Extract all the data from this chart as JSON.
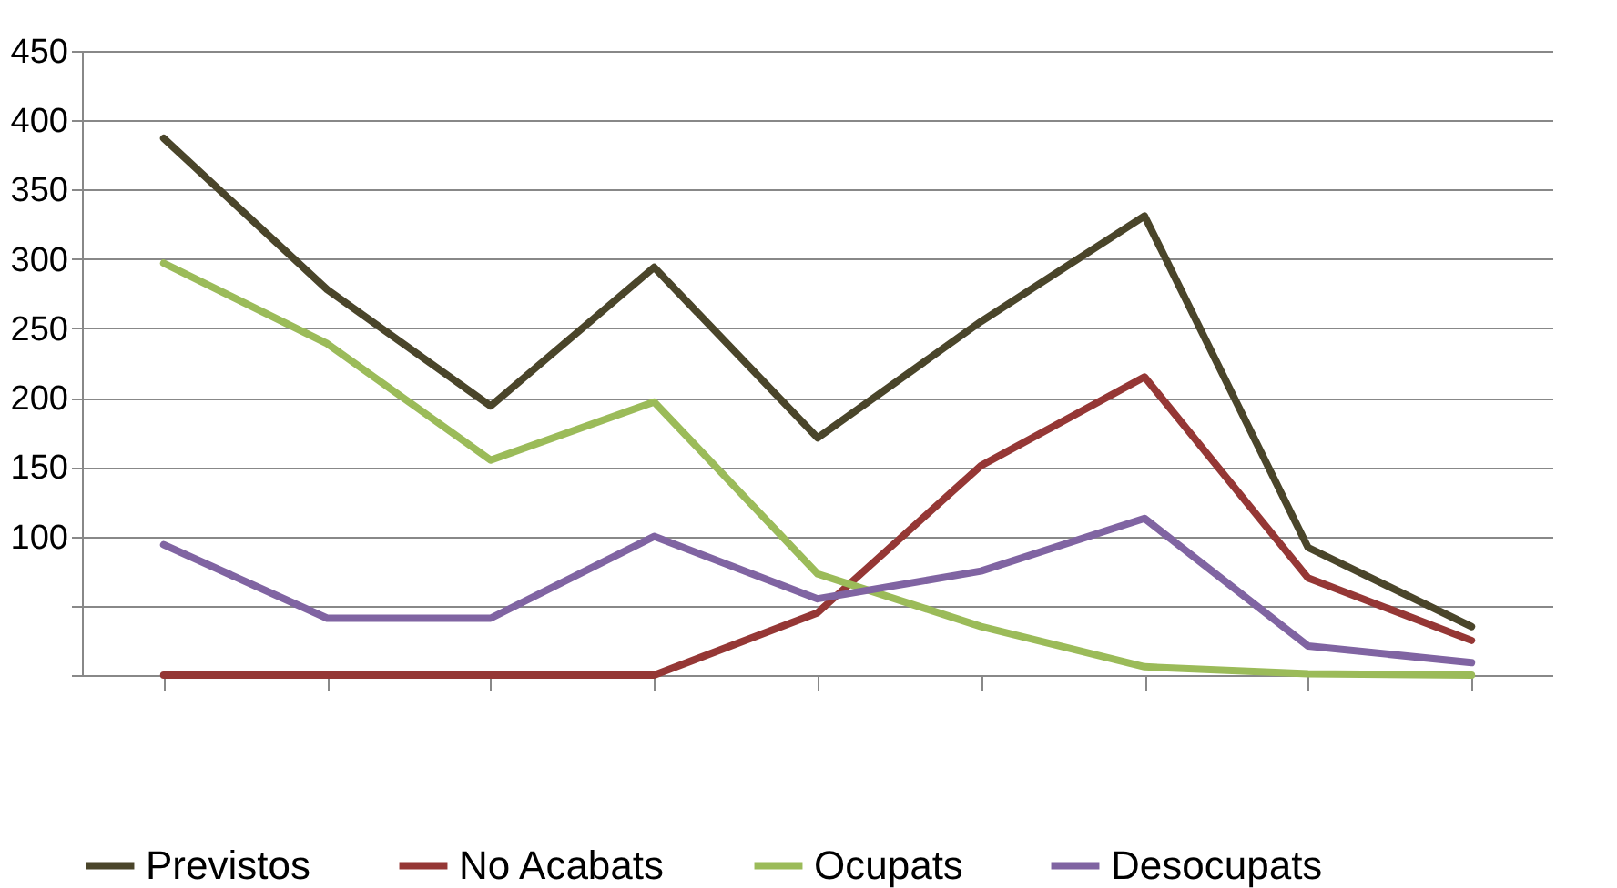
{
  "chart_data": {
    "type": "line",
    "categories": [
      null,
      null,
      null,
      null,
      null,
      null,
      null,
      null,
      null
    ],
    "series": [
      {
        "name": "Previstos",
        "color": "#4a452a",
        "values": [
          387,
          278,
          194,
          294,
          171,
          255,
          331,
          92,
          35
        ]
      },
      {
        "name": "No Acabats",
        "color": "#953735",
        "values": [
          0,
          0,
          0,
          0,
          45,
          151,
          215,
          70,
          25
        ]
      },
      {
        "name": "Ocupats",
        "color": "#9bbb59",
        "values": [
          297,
          239,
          155,
          197,
          73,
          35,
          6,
          1,
          0
        ]
      },
      {
        "name": "Desocupats",
        "color": "#8064a2",
        "values": [
          94,
          41,
          41,
          100,
          55,
          75,
          113,
          21,
          9
        ]
      }
    ],
    "ylim": [
      0,
      450
    ],
    "yticks": [
      {
        "value": 0,
        "label": null
      },
      {
        "value": 50,
        "label": null
      },
      100,
      150,
      200,
      250,
      300,
      350,
      400,
      450
    ],
    "grid": "y",
    "legend": "bottom",
    "tick_labels": "y",
    "marker": "none",
    "line_style": "solid"
  }
}
